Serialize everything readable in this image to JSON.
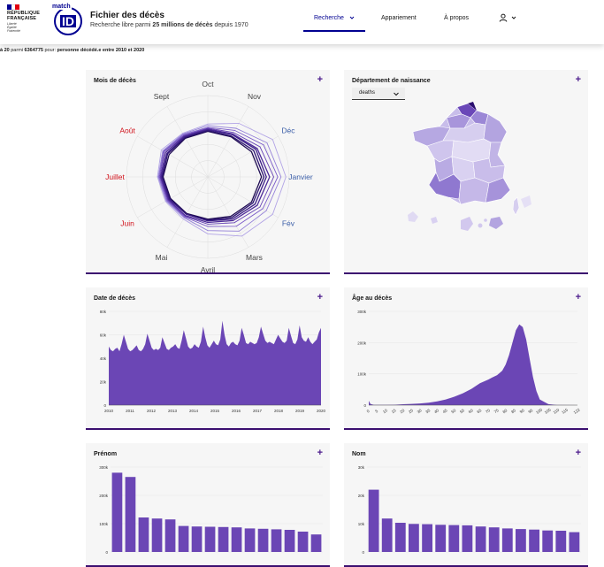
{
  "header": {
    "gov_name_line1": "RÉPUBLIQUE",
    "gov_name_line2": "FRANÇAISE",
    "motto": [
      "Liberté",
      "Égalité",
      "Fraternité"
    ],
    "brand_small": "match",
    "brand_big": "ID",
    "title": "Fichier des décès",
    "subtitle_prefix": "Recherche libre parmi ",
    "subtitle_bold": "25 millions de décès",
    "subtitle_suffix": " depuis 1970",
    "nav": {
      "search": "Recherche",
      "matching": "Appariement",
      "about": "À propos"
    },
    "colors": {
      "primary": "#000091",
      "flag_blue": "#000091",
      "flag_red": "#e1000f"
    }
  },
  "summary": {
    "range": "à 20",
    "mid": " parmi ",
    "total": "6364775",
    "pour": " pour: ",
    "criteria": "personne décédé.e entre 2010 et 2020"
  },
  "cards": {
    "mois": {
      "title": "Mois de décès",
      "plus": "+"
    },
    "departement": {
      "title": "Département de naissance",
      "plus": "+",
      "select_value": "deaths"
    },
    "date": {
      "title": "Date de décès",
      "plus": "+"
    },
    "age": {
      "title": "Âge au décès",
      "plus": "+"
    },
    "prenom": {
      "title": "Prénom",
      "plus": "+"
    },
    "nom": {
      "title": "Nom",
      "plus": "+"
    }
  },
  "chart_data": [
    {
      "type": "radar",
      "name": "mois",
      "labels": [
        "Oct",
        "Nov",
        "Déc",
        "Janvier",
        "Fév",
        "Mars",
        "Avril",
        "Mai",
        "Juin",
        "Juillet",
        "Août",
        "Sept"
      ],
      "label_colors": [
        "#444444",
        "#444444",
        "#3b5ea8",
        "#3b5ea8",
        "#3b5ea8",
        "#444444",
        "#444444",
        "#444444",
        "#d0121b",
        "#d0121b",
        "#d0121b",
        "#444444"
      ],
      "series_colors": [
        "#1e0b52",
        "#2c1470",
        "#3b1e86",
        "#4d2a99",
        "#6440b3",
        "#7a5ac8",
        "#9480d8",
        "#b2a4e6"
      ],
      "series": [
        [
          0.56,
          0.57,
          0.62,
          0.66,
          0.62,
          0.56,
          0.52,
          0.52,
          0.53,
          0.55,
          0.55,
          0.55
        ],
        [
          0.57,
          0.58,
          0.65,
          0.69,
          0.64,
          0.58,
          0.53,
          0.53,
          0.54,
          0.56,
          0.57,
          0.56
        ],
        [
          0.58,
          0.6,
          0.68,
          0.72,
          0.67,
          0.6,
          0.54,
          0.53,
          0.55,
          0.57,
          0.58,
          0.57
        ],
        [
          0.59,
          0.61,
          0.7,
          0.76,
          0.7,
          0.62,
          0.56,
          0.55,
          0.56,
          0.58,
          0.6,
          0.58
        ],
        [
          0.6,
          0.63,
          0.74,
          0.81,
          0.74,
          0.65,
          0.58,
          0.56,
          0.57,
          0.59,
          0.62,
          0.59
        ],
        [
          0.61,
          0.66,
          0.79,
          0.86,
          0.78,
          0.7,
          0.61,
          0.57,
          0.58,
          0.6,
          0.63,
          0.6
        ],
        [
          0.63,
          0.69,
          0.84,
          0.9,
          0.83,
          0.77,
          0.66,
          0.58,
          0.59,
          0.61,
          0.64,
          0.61
        ],
        [
          0.65,
          0.76,
          0.92,
          0.96,
          0.92,
          0.84,
          0.7,
          0.6,
          0.6,
          0.62,
          0.66,
          0.62
        ]
      ]
    },
    {
      "type": "area",
      "name": "date",
      "yticks": [
        "0",
        "20k",
        "40k",
        "60k",
        "80k"
      ],
      "ymax": 80000,
      "xticks": [
        "2010",
        "2011",
        "2012",
        "2013",
        "2014",
        "2015",
        "2016",
        "2017",
        "2018",
        "2019",
        "2020"
      ],
      "values": [
        50000,
        47000,
        46000,
        48000,
        49000,
        46000,
        52000,
        60000,
        54000,
        48000,
        46000,
        47000,
        49000,
        51000,
        47000,
        46000,
        48000,
        52000,
        61000,
        55000,
        49000,
        47000,
        48000,
        47000,
        49000,
        58000,
        53000,
        48000,
        47000,
        49000,
        50000,
        52000,
        49000,
        48000,
        55000,
        64000,
        57000,
        50000,
        48000,
        49000,
        52000,
        50000,
        49000,
        54000,
        67000,
        58000,
        51000,
        49000,
        52000,
        55000,
        52000,
        51000,
        56000,
        72000,
        60000,
        52000,
        50000,
        53000,
        54000,
        52000,
        51000,
        55000,
        66000,
        60000,
        53000,
        52000,
        54000,
        53000,
        52000,
        53000,
        58000,
        67000,
        61000,
        55000,
        53000,
        54000,
        53000,
        52000,
        56000,
        60000,
        57000,
        54000,
        53000,
        55000,
        66000,
        59000,
        53000,
        52000,
        56000,
        68000,
        58000,
        55000,
        54000,
        58000,
        54000,
        52000,
        54000,
        56000,
        62000,
        66000
      ]
    },
    {
      "type": "area",
      "name": "age",
      "yticks": [
        "0",
        "100k",
        "200k",
        "300k"
      ],
      "ymax": 300000,
      "xticks": [
        "0",
        "5",
        "10",
        "15",
        "20",
        "25",
        "30",
        "35",
        "40",
        "45",
        "50",
        "55",
        "60",
        "65",
        "70",
        "75",
        "80",
        "85",
        "90",
        "95",
        "100",
        "105",
        "110",
        "115",
        "122"
      ],
      "x": [
        0,
        1,
        3,
        5,
        10,
        15,
        20,
        25,
        30,
        35,
        40,
        45,
        50,
        55,
        60,
        65,
        70,
        72,
        75,
        78,
        80,
        82,
        84,
        86,
        88,
        90,
        92,
        94,
        96,
        98,
        100,
        105,
        110,
        122
      ],
      "values": [
        14000,
        4000,
        800,
        500,
        600,
        1200,
        2800,
        4000,
        5500,
        8000,
        12000,
        18000,
        27000,
        38000,
        52000,
        70000,
        82000,
        88000,
        96000,
        110000,
        130000,
        160000,
        200000,
        240000,
        258000,
        250000,
        210000,
        150000,
        90000,
        45000,
        18000,
        3000,
        300,
        0
      ]
    },
    {
      "type": "bar",
      "name": "prenom",
      "yticks": [
        "0",
        "100k",
        "200k",
        "300k"
      ],
      "ymax": 300000,
      "values": [
        280000,
        265000,
        122000,
        118000,
        115000,
        92000,
        90000,
        89000,
        88000,
        87000,
        83000,
        82000,
        80000,
        78000,
        72000,
        62000
      ]
    },
    {
      "type": "bar",
      "name": "nom",
      "yticks": [
        "0",
        "10k",
        "20k",
        "30k"
      ],
      "ymax": 30000,
      "values": [
        22000,
        11800,
        10300,
        9900,
        9800,
        9600,
        9500,
        9400,
        9000,
        8700,
        8300,
        8100,
        7900,
        7600,
        7500,
        7000
      ]
    }
  ]
}
